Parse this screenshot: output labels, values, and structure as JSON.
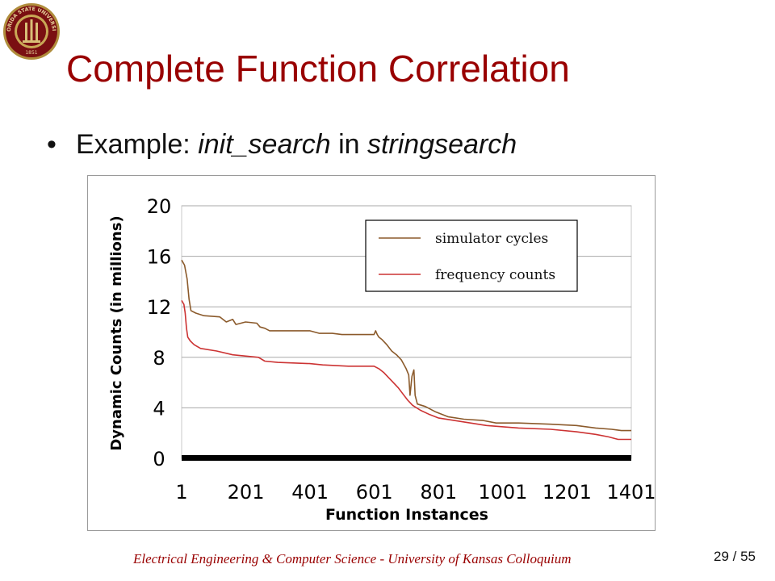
{
  "slide": {
    "title": "Complete Function Correlation",
    "bullet": {
      "prefix": "Example:",
      "function_name": "init_search",
      "connector": "in",
      "program": "stringsearch"
    },
    "footer": "Electrical Engineering & Computer Science - University of Kansas Colloquium",
    "page": {
      "current": "29",
      "separator": " / ",
      "total": "55"
    },
    "logo": {
      "icon": "fsu-seal-icon",
      "rim_text": "FLORIDA STATE UNIVERSITY",
      "year": "1851"
    }
  },
  "chart_data": {
    "type": "line",
    "xlabel": "Function Instances",
    "ylabel": "Dynamic Counts (in millions)",
    "xlim": [
      1,
      1401
    ],
    "ylim": [
      0,
      20
    ],
    "x_ticks": [
      1,
      201,
      401,
      601,
      801,
      1001,
      1201,
      1401
    ],
    "y_ticks": [
      0,
      4,
      8,
      12,
      16,
      20
    ],
    "grid": {
      "horizontal": true,
      "vertical": false
    },
    "legend_position": "top-right",
    "series": [
      {
        "name": "simulator cycles",
        "color": "#8b5a2b",
        "points": [
          [
            1,
            15.7
          ],
          [
            10,
            15.3
          ],
          [
            18,
            14.2
          ],
          [
            24,
            12.6
          ],
          [
            30,
            11.7
          ],
          [
            45,
            11.5
          ],
          [
            70,
            11.3
          ],
          [
            120,
            11.2
          ],
          [
            140,
            10.8
          ],
          [
            160,
            11.0
          ],
          [
            170,
            10.6
          ],
          [
            200,
            10.8
          ],
          [
            235,
            10.7
          ],
          [
            245,
            10.4
          ],
          [
            260,
            10.3
          ],
          [
            275,
            10.1
          ],
          [
            340,
            10.1
          ],
          [
            400,
            10.1
          ],
          [
            430,
            9.9
          ],
          [
            470,
            9.9
          ],
          [
            500,
            9.8
          ],
          [
            560,
            9.8
          ],
          [
            600,
            9.8
          ],
          [
            605,
            10.1
          ],
          [
            610,
            9.8
          ],
          [
            615,
            9.6
          ],
          [
            625,
            9.4
          ],
          [
            640,
            9.0
          ],
          [
            655,
            8.5
          ],
          [
            670,
            8.2
          ],
          [
            685,
            7.8
          ],
          [
            700,
            7.1
          ],
          [
            708,
            6.6
          ],
          [
            712,
            5.0
          ],
          [
            718,
            6.5
          ],
          [
            724,
            7.0
          ],
          [
            728,
            5.0
          ],
          [
            735,
            4.3
          ],
          [
            760,
            4.1
          ],
          [
            790,
            3.7
          ],
          [
            830,
            3.3
          ],
          [
            880,
            3.1
          ],
          [
            940,
            3.0
          ],
          [
            980,
            2.8
          ],
          [
            1050,
            2.8
          ],
          [
            1150,
            2.7
          ],
          [
            1230,
            2.6
          ],
          [
            1290,
            2.4
          ],
          [
            1340,
            2.3
          ],
          [
            1370,
            2.2
          ],
          [
            1401,
            2.2
          ]
        ]
      },
      {
        "name": "frequency counts",
        "color": "#cc3333",
        "points": [
          [
            1,
            12.5
          ],
          [
            8,
            12.2
          ],
          [
            12,
            11.5
          ],
          [
            16,
            10.3
          ],
          [
            20,
            9.6
          ],
          [
            28,
            9.3
          ],
          [
            40,
            9.0
          ],
          [
            60,
            8.7
          ],
          [
            110,
            8.5
          ],
          [
            160,
            8.2
          ],
          [
            240,
            8.0
          ],
          [
            260,
            7.7
          ],
          [
            300,
            7.6
          ],
          [
            400,
            7.5
          ],
          [
            440,
            7.4
          ],
          [
            520,
            7.3
          ],
          [
            600,
            7.3
          ],
          [
            615,
            7.1
          ],
          [
            630,
            6.8
          ],
          [
            645,
            6.4
          ],
          [
            660,
            6.0
          ],
          [
            675,
            5.6
          ],
          [
            690,
            5.1
          ],
          [
            705,
            4.6
          ],
          [
            720,
            4.2
          ],
          [
            745,
            3.8
          ],
          [
            770,
            3.5
          ],
          [
            800,
            3.2
          ],
          [
            850,
            3.0
          ],
          [
            900,
            2.8
          ],
          [
            950,
            2.6
          ],
          [
            1050,
            2.4
          ],
          [
            1150,
            2.3
          ],
          [
            1230,
            2.1
          ],
          [
            1290,
            1.9
          ],
          [
            1330,
            1.7
          ],
          [
            1360,
            1.5
          ],
          [
            1401,
            1.5
          ]
        ]
      }
    ]
  }
}
